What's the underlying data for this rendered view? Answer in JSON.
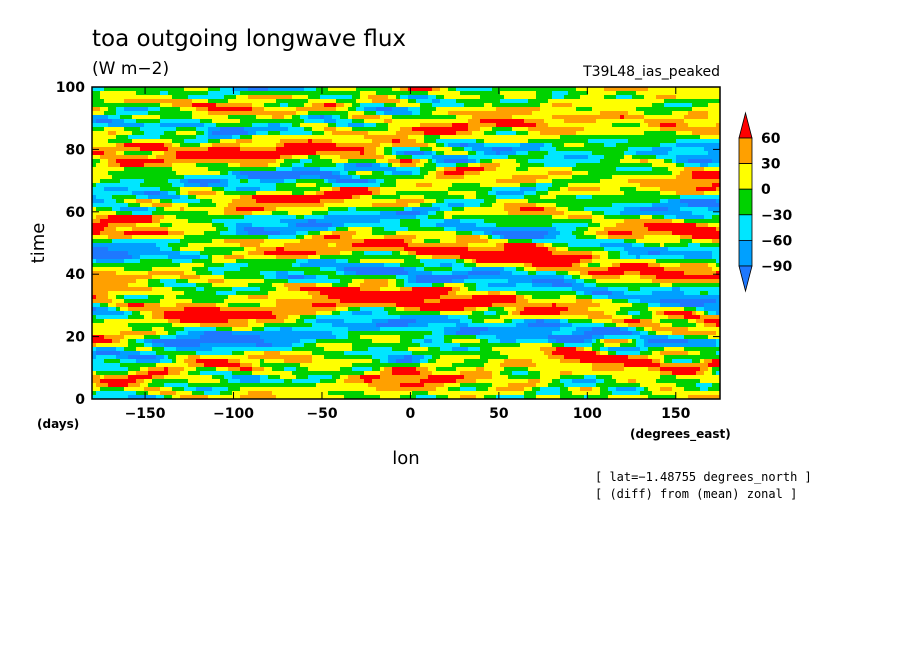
{
  "chart_data": {
    "type": "heatmap",
    "title": "toa outgoing longwave flux",
    "units": "(W m−2)",
    "experiment": "T39L48_ias_peaked",
    "xlabel": "lon",
    "ylabel": "time",
    "x_unit_label": "(degrees_east)",
    "y_unit_label": "(days)",
    "xlim": [
      -180,
      175
    ],
    "ylim": [
      0,
      100
    ],
    "x_ticks": [
      -150,
      -100,
      -50,
      0,
      50,
      100,
      150
    ],
    "x_tick_labels": [
      "−150",
      "−100",
      "−50",
      "0",
      "50",
      "100",
      "150"
    ],
    "y_ticks": [
      0,
      20,
      40,
      60,
      80,
      100
    ],
    "y_tick_labels": [
      "0",
      "20",
      "40",
      "60",
      "80",
      "100"
    ],
    "levels": [
      -90,
      -60,
      -30,
      0,
      30,
      60
    ],
    "level_labels": [
      "−90",
      "−60",
      "−30",
      "0",
      "30",
      "60"
    ],
    "colors": [
      "#1e78ff",
      "#00a0ff",
      "#00e6ff",
      "#00d200",
      "#ffff00",
      "#ffa000",
      "#ff0000"
    ],
    "notes": [
      "[ lat=−1.48755 degrees_north ]",
      "[ (diff) from (mean) zonal ]"
    ]
  }
}
